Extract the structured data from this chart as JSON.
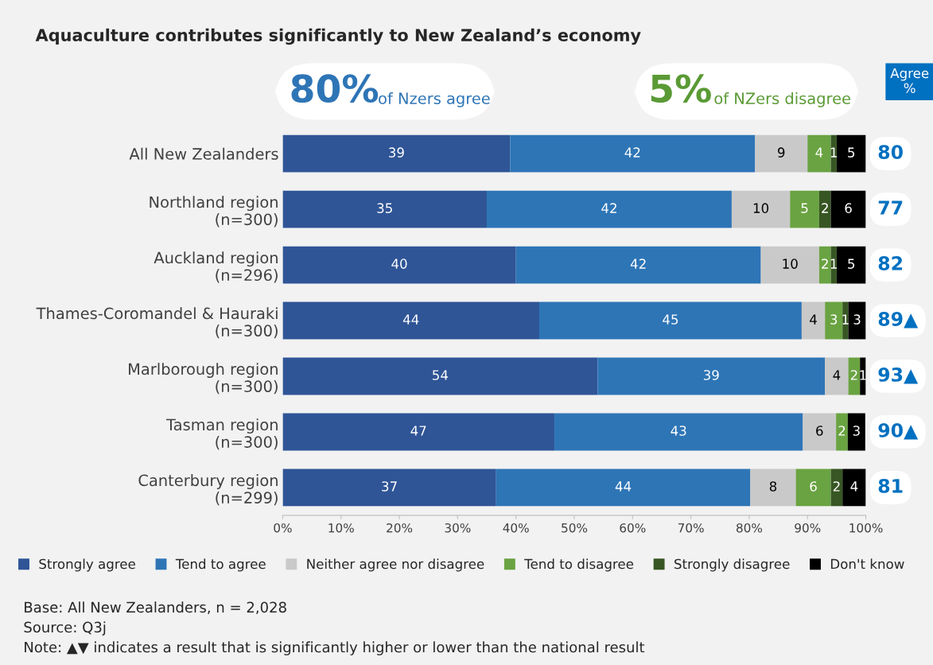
{
  "chart_data": {
    "type": "bar",
    "orientation": "horizontal",
    "stacked": true,
    "title": "Aquaculture contributes significantly to New Zealand’s economy",
    "categories": [
      "All New Zealanders",
      "Northland region\n(n=300)",
      "Auckland region\n(n=296)",
      "Thames-Coromandel & Hauraki\n(n=300)",
      "Marlborough region\n(n=300)",
      "Tasman region\n(n=300)",
      "Canterbury region\n(n=299)"
    ],
    "series": [
      {
        "name": "Strongly agree",
        "color": "#2f5597",
        "values": [
          39,
          35,
          40,
          44,
          54,
          46.6,
          36.6
        ],
        "value_labels": [
          "39",
          "35",
          "40",
          "44",
          "54",
          "47",
          "37"
        ]
      },
      {
        "name": "Tend to agree",
        "color": "#2e75b6",
        "values": [
          42,
          42,
          42,
          45,
          39,
          42.6,
          43.6
        ],
        "value_labels": [
          "42",
          "42",
          "42",
          "45",
          "39",
          "43",
          "44"
        ]
      },
      {
        "name": "Neither agree nor disagree",
        "color": "#c9c9c9",
        "values": [
          9,
          10,
          10,
          4,
          4,
          5.7,
          7.8
        ],
        "value_labels": [
          "9",
          "10",
          "10",
          "4",
          "4",
          "6",
          "8"
        ]
      },
      {
        "name": "Tend to disagree",
        "color": "#6aa342",
        "values": [
          4,
          5,
          2,
          3,
          2,
          2,
          6
        ],
        "value_labels": [
          "4",
          "5",
          "2",
          "3",
          "2",
          "2",
          "6"
        ]
      },
      {
        "name": "Strongly disagree",
        "color": "#375623",
        "values": [
          1,
          2,
          1,
          1,
          0,
          0,
          2
        ],
        "value_labels": [
          "1",
          "2",
          "1",
          "1",
          null,
          null,
          "2"
        ]
      },
      {
        "name": "Don't know",
        "color": "#000000",
        "values": [
          5,
          6,
          5,
          3,
          1,
          3,
          4
        ],
        "value_labels": [
          "5",
          "6",
          "5",
          "3",
          "1",
          "3",
          "4"
        ]
      }
    ],
    "xlim": [
      0,
      100
    ],
    "xticks": [
      {
        "value": 0,
        "label": "0%"
      },
      {
        "value": 10,
        "label": "10%"
      },
      {
        "value": 20,
        "label": "20%"
      },
      {
        "value": 30,
        "label": "30%"
      },
      {
        "value": 40,
        "label": "40%"
      },
      {
        "value": 50,
        "label": "50%"
      },
      {
        "value": 60,
        "label": "60%"
      },
      {
        "value": 70,
        "label": "70%"
      },
      {
        "value": 80,
        "label": "80%"
      },
      {
        "value": 90,
        "label": "90%"
      },
      {
        "value": 100,
        "label": "100%"
      }
    ],
    "grid": false,
    "legend": "bottom",
    "marker": "square",
    "annotations": [
      "80%",
      "of Nzers agree",
      "5%",
      "of NZers disagree",
      "Agree %",
      "80",
      "77",
      "82",
      "89▲",
      "93▲",
      "90▲",
      "81",
      "Base: All New Zealanders, n = 2,028",
      "Source: Q3j",
      "Note: ▲▼ indicates a result that is significantly higher or lower than the national result"
    ]
  }
}
